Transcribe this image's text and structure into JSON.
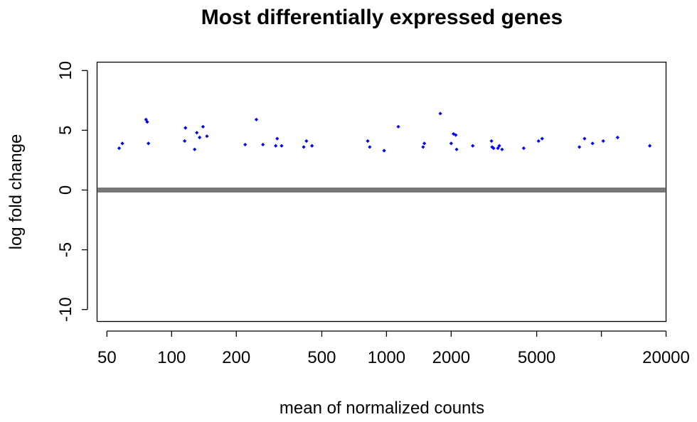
{
  "chart_data": {
    "type": "scatter",
    "title": "Most differentially expressed genes",
    "xlabel": "mean of normalized counts",
    "ylabel": "log fold change",
    "x_scale": "log",
    "xlim": [
      45,
      20000
    ],
    "ylim": [
      -11,
      10.7
    ],
    "x_ticks": [
      50,
      100,
      200,
      500,
      1000,
      2000,
      5000,
      10000,
      20000
    ],
    "x_tick_labels": [
      "50",
      "100",
      "200",
      "500",
      "1000",
      "2000",
      "5000",
      "",
      "20000"
    ],
    "y_ticks": [
      10,
      5,
      0,
      -5,
      -10
    ],
    "y_tick_labels": [
      "10",
      "5",
      "0",
      "-5",
      "-10"
    ],
    "reference_line_y": 0,
    "grid": false,
    "series": [
      {
        "color": "#0000ff",
        "marker": "diamond",
        "points": [
          [
            57,
            3.5
          ],
          [
            59,
            3.9
          ],
          [
            76,
            5.9
          ],
          [
            77,
            5.7
          ],
          [
            78,
            3.9
          ],
          [
            115,
            4.1
          ],
          [
            116,
            5.2
          ],
          [
            128,
            3.4
          ],
          [
            131,
            4.8
          ],
          [
            135,
            4.4
          ],
          [
            140,
            5.3
          ],
          [
            146,
            4.5
          ],
          [
            220,
            3.8
          ],
          [
            248,
            5.9
          ],
          [
            266,
            3.8
          ],
          [
            305,
            3.7
          ],
          [
            310,
            4.3
          ],
          [
            325,
            3.7
          ],
          [
            412,
            3.6
          ],
          [
            424,
            4.1
          ],
          [
            450,
            3.7
          ],
          [
            818,
            4.1
          ],
          [
            836,
            3.6
          ],
          [
            975,
            3.3
          ],
          [
            1135,
            5.3
          ],
          [
            1480,
            3.6
          ],
          [
            1500,
            3.9
          ],
          [
            1780,
            6.4
          ],
          [
            2000,
            3.9
          ],
          [
            2050,
            4.7
          ],
          [
            2100,
            4.6
          ],
          [
            2120,
            3.4
          ],
          [
            2520,
            3.7
          ],
          [
            3080,
            4.1
          ],
          [
            3100,
            3.6
          ],
          [
            3150,
            3.5
          ],
          [
            3300,
            3.5
          ],
          [
            3350,
            3.7
          ],
          [
            3450,
            3.4
          ],
          [
            4350,
            3.5
          ],
          [
            5100,
            4.1
          ],
          [
            5300,
            4.3
          ],
          [
            7900,
            3.6
          ],
          [
            8350,
            4.3
          ],
          [
            9100,
            3.9
          ],
          [
            10200,
            4.1
          ],
          [
            11900,
            4.4
          ],
          [
            16800,
            3.7
          ]
        ]
      }
    ]
  }
}
